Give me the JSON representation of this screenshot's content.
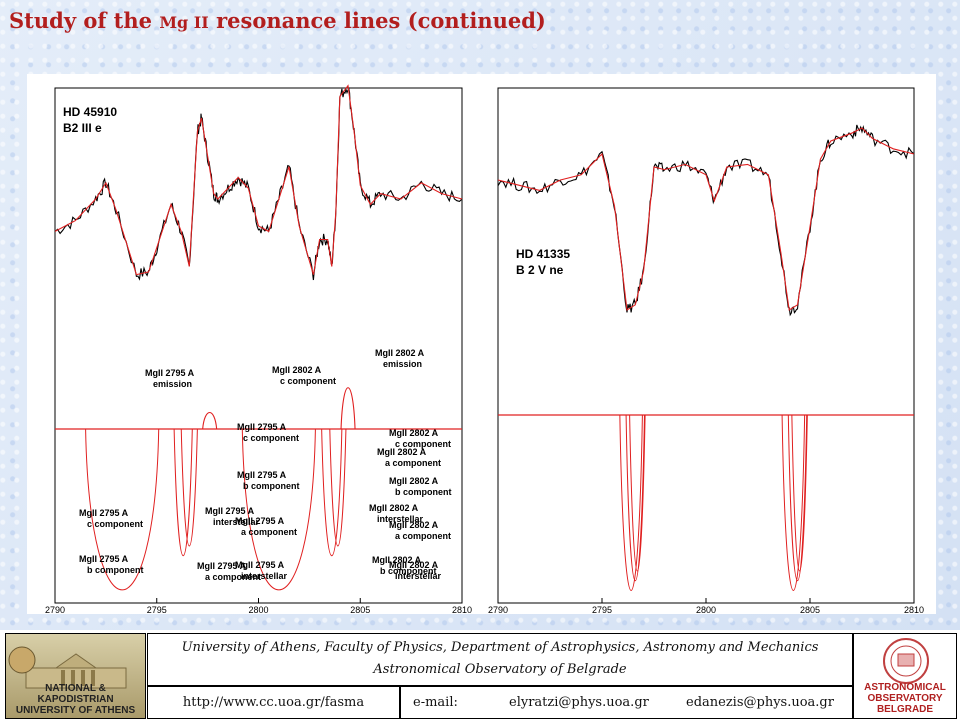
{
  "slide": {
    "title_part1": "Study of the ",
    "title_part2": "Mg II",
    "title_part3": " resonance lines (continued)"
  },
  "chart_data": [
    {
      "type": "line",
      "star_name": "HD 45910",
      "spectral_type": "B2 III e",
      "x_ticks": [
        "2790",
        "2795",
        "2800",
        "2805",
        "2810"
      ],
      "xlim": [
        2790,
        2810
      ],
      "grid": false,
      "observed_spectrum_approx": {
        "x": [
          2790,
          2791,
          2792,
          2792.5,
          2793,
          2794,
          2794.6,
          2795,
          2795.7,
          2796.2,
          2796.6,
          2797,
          2797.2,
          2797.5,
          2797.8,
          2798,
          2798.5,
          2799,
          2799.5,
          2800,
          2800.5,
          2801,
          2801.5,
          2802,
          2802.7,
          2803,
          2803.4,
          2803.6,
          2803.8,
          2804,
          2804.4,
          2804.7,
          2805,
          2805.5,
          2806,
          2807,
          2808,
          2809,
          2810
        ],
        "y": [
          0.58,
          0.62,
          0.7,
          0.76,
          0.66,
          0.42,
          0.43,
          0.52,
          0.68,
          0.58,
          0.45,
          0.95,
          1.0,
          0.86,
          0.72,
          0.7,
          0.74,
          0.78,
          0.74,
          0.6,
          0.58,
          0.7,
          0.82,
          0.6,
          0.42,
          0.55,
          0.55,
          0.45,
          0.65,
          1.08,
          1.12,
          0.95,
          0.75,
          0.68,
          0.72,
          0.7,
          0.76,
          0.72,
          0.7
        ]
      },
      "model_continuum_level": 0.82,
      "annotations": [
        {
          "line": "MgII 2795 A",
          "label": "emission"
        },
        {
          "line": "MgII 2802 A",
          "label": "c component"
        },
        {
          "line": "MgII 2802 A",
          "label": "emission"
        },
        {
          "line": "MgII 2802 A",
          "label": "a component"
        },
        {
          "line": "MgII 2795 A",
          "label": "c component"
        },
        {
          "line": "MgII 2795 A",
          "label": "interstellar"
        },
        {
          "line": "MgII 2802 A",
          "label": "interstellar"
        },
        {
          "line": "MgII 2795 A",
          "label": "b component"
        },
        {
          "line": "MgII 2795 A",
          "label": "a component"
        },
        {
          "line": "MgII 2802 A",
          "label": "b component"
        }
      ]
    },
    {
      "type": "line",
      "star_name": "HD 41335",
      "spectral_type": "B 2 V ne",
      "x_ticks": [
        "2790",
        "2795",
        "2800",
        "2805",
        "2810"
      ],
      "xlim": [
        2790,
        2810
      ],
      "grid": false,
      "observed_spectrum_approx": {
        "x": [
          2790,
          2791,
          2792,
          2793,
          2794,
          2795,
          2795.6,
          2796.2,
          2796.6,
          2797,
          2797.5,
          2798,
          2799,
          2800,
          2800.4,
          2801,
          2802,
          2803,
          2803.6,
          2804,
          2804.4,
          2805,
          2805.5,
          2806,
          2807,
          2807.5,
          2808,
          2809,
          2810
        ],
        "y": [
          0.8,
          0.78,
          0.76,
          0.8,
          0.82,
          0.9,
          0.7,
          0.3,
          0.32,
          0.45,
          0.85,
          0.84,
          0.86,
          0.82,
          0.72,
          0.85,
          0.86,
          0.82,
          0.52,
          0.3,
          0.32,
          0.62,
          0.88,
          0.95,
          0.98,
          1.0,
          0.96,
          0.92,
          0.9
        ]
      },
      "model_continuum_level": 1.0,
      "annotations": [
        {
          "line": "MgII 2795 A",
          "label": "c component"
        },
        {
          "line": "MgII 2802 A",
          "label": "c component"
        },
        {
          "line": "MgII 2795 A",
          "label": "b component"
        },
        {
          "line": "MgII 2802 A",
          "label": "b component"
        },
        {
          "line": "MgII 2795 A",
          "label": "a component"
        },
        {
          "line": "MgII 2802 A",
          "label": "a component"
        },
        {
          "line": "MgII 2795 A",
          "label": "interstellar"
        },
        {
          "line": "MgII 2802 A",
          "label": "interstellar"
        }
      ]
    }
  ],
  "footer": {
    "affiliation_line1": "University of Athens, Faculty of Physics, Department of Astrophysics, Astronomy and Mechanics",
    "affiliation_line2": "Astronomical Observatory of Belgrade",
    "url": "http://www.cc.uoa.gr/fasma",
    "email_label": "e-mail:",
    "email1": "elyratzi@phys.uoa.gr",
    "email2": "edanezis@phys.uoa.gr",
    "logo_left_caption_line1": "NATIONAL & KAPODISTRIAN",
    "logo_left_caption_line2": "UNIVERSITY OF ATHENS",
    "logo_right_caption_line1": "ASTRONOMICAL",
    "logo_right_caption_line2": "OBSERVATORY",
    "logo_right_caption_line3": "BELGRADE"
  },
  "colors": {
    "title": "#b21e1e",
    "model": "#e02020",
    "observed": "#000000"
  }
}
